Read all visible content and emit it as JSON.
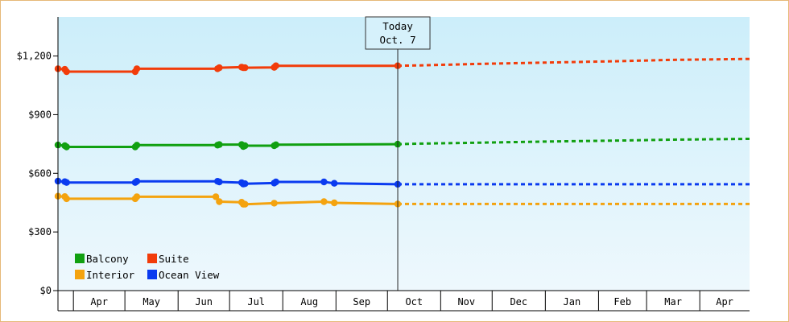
{
  "chart_data": {
    "type": "line",
    "title": "",
    "xlabel": "",
    "ylabel": "",
    "ylim": [
      0,
      1400
    ],
    "y_ticks": [
      {
        "value": 0,
        "label": "$0"
      },
      {
        "value": 300,
        "label": "$300"
      },
      {
        "value": 600,
        "label": "$600"
      },
      {
        "value": 900,
        "label": "$900"
      },
      {
        "value": 1200,
        "label": "$1,200"
      }
    ],
    "x_range": [
      "2024-03-23",
      "2025-04-30"
    ],
    "months": [
      {
        "label": "Apr",
        "start": "2024-04-01",
        "end": "2024-05-01"
      },
      {
        "label": "May",
        "start": "2024-05-01",
        "end": "2024-06-01"
      },
      {
        "label": "Jun",
        "start": "2024-06-01",
        "end": "2024-07-01"
      },
      {
        "label": "Jul",
        "start": "2024-07-01",
        "end": "2024-08-01"
      },
      {
        "label": "Aug",
        "start": "2024-08-01",
        "end": "2024-09-01"
      },
      {
        "label": "Sep",
        "start": "2024-09-01",
        "end": "2024-10-01"
      },
      {
        "label": "Oct",
        "start": "2024-10-01",
        "end": "2024-11-01"
      },
      {
        "label": "Nov",
        "start": "2024-11-01",
        "end": "2024-12-01"
      },
      {
        "label": "Dec",
        "start": "2024-12-01",
        "end": "2025-01-01"
      },
      {
        "label": "Jan",
        "start": "2025-01-01",
        "end": "2025-02-01"
      },
      {
        "label": "Feb",
        "start": "2025-02-01",
        "end": "2025-03-01"
      },
      {
        "label": "Mar",
        "start": "2025-03-01",
        "end": "2025-04-01"
      },
      {
        "label": "Apr",
        "start": "2025-04-01",
        "end": "2025-05-01"
      }
    ],
    "today": {
      "date": "2024-10-07",
      "line1": "Today",
      "line2": "Oct. 7"
    },
    "grid": false,
    "legend_position": "bottom-left",
    "background": {
      "top": "#cceefa",
      "bottom": "#eef8fd"
    },
    "series": [
      {
        "name": "Balcony",
        "color": "#11a011",
        "points": [
          {
            "x": "2024-03-23",
            "y": 745
          },
          {
            "x": "2024-03-27",
            "y": 741
          },
          {
            "x": "2024-03-28",
            "y": 735
          },
          {
            "x": "2024-05-07",
            "y": 735
          },
          {
            "x": "2024-05-08",
            "y": 744
          },
          {
            "x": "2024-06-24",
            "y": 744
          },
          {
            "x": "2024-06-25",
            "y": 747
          },
          {
            "x": "2024-07-08",
            "y": 747
          },
          {
            "x": "2024-07-09",
            "y": 737
          },
          {
            "x": "2024-07-10",
            "y": 741
          },
          {
            "x": "2024-07-27",
            "y": 741
          },
          {
            "x": "2024-07-28",
            "y": 746
          },
          {
            "x": "2024-10-07",
            "y": 749
          }
        ],
        "forecast": [
          {
            "x": "2024-10-07",
            "y": 749
          },
          {
            "x": "2024-10-20",
            "y": 752
          },
          {
            "x": "2024-11-25",
            "y": 757
          },
          {
            "x": "2024-12-31",
            "y": 762
          },
          {
            "x": "2025-02-10",
            "y": 767
          },
          {
            "x": "2025-03-15",
            "y": 772
          },
          {
            "x": "2025-04-30",
            "y": 776
          }
        ]
      },
      {
        "name": "Suite",
        "color": "#f23c0a",
        "points": [
          {
            "x": "2024-03-23",
            "y": 1135
          },
          {
            "x": "2024-03-27",
            "y": 1132
          },
          {
            "x": "2024-03-28",
            "y": 1120
          },
          {
            "x": "2024-05-07",
            "y": 1120
          },
          {
            "x": "2024-05-08",
            "y": 1135
          },
          {
            "x": "2024-06-24",
            "y": 1135
          },
          {
            "x": "2024-06-25",
            "y": 1140
          },
          {
            "x": "2024-07-08",
            "y": 1143
          },
          {
            "x": "2024-07-09",
            "y": 1140
          },
          {
            "x": "2024-07-10",
            "y": 1140
          },
          {
            "x": "2024-07-27",
            "y": 1142
          },
          {
            "x": "2024-07-28",
            "y": 1150
          },
          {
            "x": "2024-10-07",
            "y": 1150
          }
        ],
        "forecast": [
          {
            "x": "2024-10-07",
            "y": 1150
          },
          {
            "x": "2024-10-20",
            "y": 1152
          },
          {
            "x": "2024-11-25",
            "y": 1160
          },
          {
            "x": "2024-12-31",
            "y": 1166
          },
          {
            "x": "2025-02-10",
            "y": 1173
          },
          {
            "x": "2025-03-15",
            "y": 1180
          },
          {
            "x": "2025-04-30",
            "y": 1185
          }
        ]
      },
      {
        "name": "Interior",
        "color": "#f4a30f",
        "points": [
          {
            "x": "2024-03-23",
            "y": 483
          },
          {
            "x": "2024-03-27",
            "y": 481
          },
          {
            "x": "2024-03-28",
            "y": 470
          },
          {
            "x": "2024-05-07",
            "y": 470
          },
          {
            "x": "2024-05-08",
            "y": 480
          },
          {
            "x": "2024-06-23",
            "y": 480
          },
          {
            "x": "2024-06-25",
            "y": 455
          },
          {
            "x": "2024-07-08",
            "y": 452
          },
          {
            "x": "2024-07-09",
            "y": 442
          },
          {
            "x": "2024-07-10",
            "y": 442
          },
          {
            "x": "2024-07-27",
            "y": 447
          },
          {
            "x": "2024-08-25",
            "y": 455
          },
          {
            "x": "2024-08-31",
            "y": 449
          },
          {
            "x": "2024-10-07",
            "y": 443
          }
        ],
        "forecast": [
          {
            "x": "2024-10-07",
            "y": 443
          },
          {
            "x": "2025-04-30",
            "y": 443
          }
        ]
      },
      {
        "name": "Ocean View",
        "color": "#0a3bf0",
        "points": [
          {
            "x": "2024-03-23",
            "y": 560
          },
          {
            "x": "2024-03-27",
            "y": 557
          },
          {
            "x": "2024-03-28",
            "y": 553
          },
          {
            "x": "2024-05-07",
            "y": 553
          },
          {
            "x": "2024-05-08",
            "y": 559
          },
          {
            "x": "2024-06-24",
            "y": 559
          },
          {
            "x": "2024-06-25",
            "y": 556
          },
          {
            "x": "2024-07-08",
            "y": 552
          },
          {
            "x": "2024-07-09",
            "y": 545
          },
          {
            "x": "2024-07-10",
            "y": 547
          },
          {
            "x": "2024-07-27",
            "y": 550
          },
          {
            "x": "2024-07-28",
            "y": 556
          },
          {
            "x": "2024-08-25",
            "y": 556
          },
          {
            "x": "2024-08-31",
            "y": 549
          },
          {
            "x": "2024-10-07",
            "y": 544
          }
        ],
        "forecast": [
          {
            "x": "2024-10-07",
            "y": 544
          },
          {
            "x": "2025-04-30",
            "y": 544
          }
        ]
      }
    ]
  }
}
